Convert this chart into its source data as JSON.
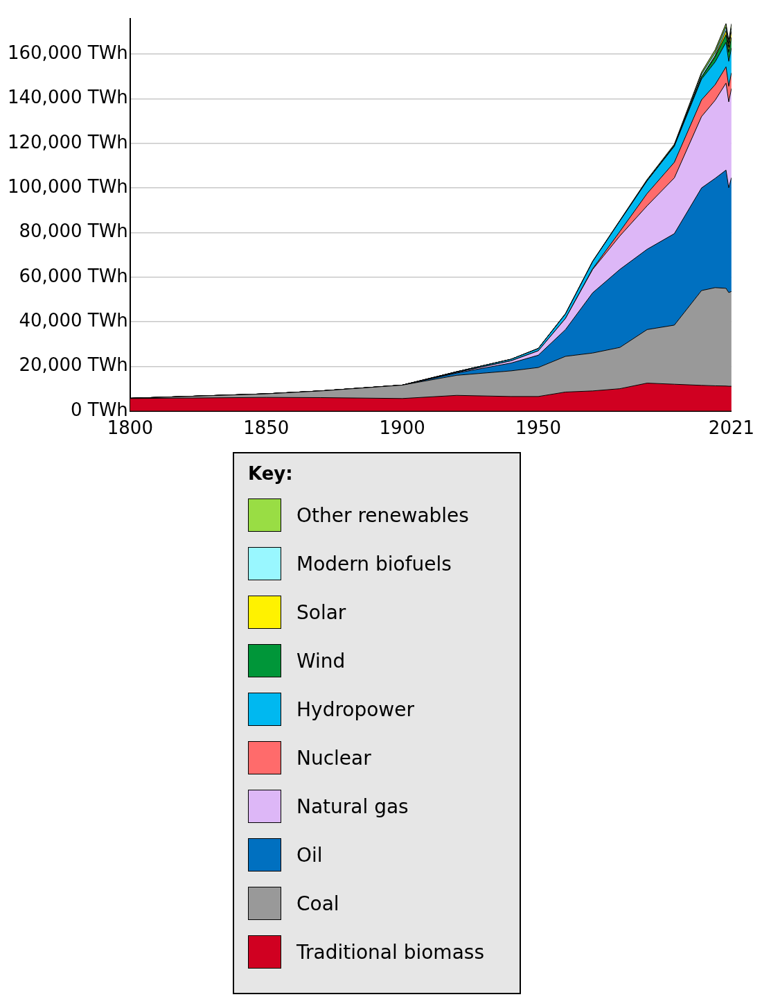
{
  "chart_data": {
    "type": "area",
    "stacked": true,
    "grid": "y",
    "legend": "bottom",
    "legend_title": "Key:",
    "x": [
      1800,
      1850,
      1870,
      1900,
      1920,
      1940,
      1950,
      1960,
      1970,
      1980,
      1990,
      2000,
      2010,
      2015,
      2019,
      2020,
      2021
    ],
    "xlim": [
      1800,
      2021
    ],
    "xticks": [
      1800,
      1850,
      1900,
      1950,
      2021
    ],
    "ylim": [
      0,
      176000
    ],
    "yticks": [
      {
        "value": 0,
        "label": "0 TWh"
      },
      {
        "value": 20000,
        "label": "20,000 TWh"
      },
      {
        "value": 40000,
        "label": "40,000 TWh"
      },
      {
        "value": 60000,
        "label": "60,000 TWh"
      },
      {
        "value": 80000,
        "label": "80,000 TWh"
      },
      {
        "value": 100000,
        "label": "100,000 TWh"
      },
      {
        "value": 120000,
        "label": "120,000 TWh"
      },
      {
        "value": 140000,
        "label": "140,000 TWh"
      },
      {
        "value": 160000,
        "label": "160,000 TWh"
      }
    ],
    "series": [
      {
        "name": "Traditional biomass",
        "color": "#d00021",
        "values": [
          5600,
          6100,
          6000,
          5600,
          7000,
          6500,
          6500,
          8500,
          9000,
          10000,
          12500,
          12000,
          11500,
          11300,
          11200,
          11100,
          11100
        ]
      },
      {
        "name": "Coal",
        "color": "#999999",
        "values": [
          100,
          1600,
          3000,
          6000,
          9000,
          11500,
          13000,
          16000,
          17000,
          18500,
          24000,
          26500,
          42500,
          44000,
          43800,
          42000,
          42500
        ]
      },
      {
        "name": "Oil",
        "color": "#0070c0",
        "values": [
          0,
          0,
          0,
          0,
          1000,
          3500,
          5500,
          12000,
          27000,
          35000,
          36000,
          41000,
          46000,
          49000,
          53000,
          47000,
          51000
        ]
      },
      {
        "name": "Natural gas",
        "color": "#ddb7f7",
        "values": [
          0,
          0,
          0,
          0,
          300,
          1000,
          2000,
          5000,
          10500,
          15000,
          19500,
          25000,
          32000,
          35000,
          39000,
          38500,
          40000
        ]
      },
      {
        "name": "Nuclear",
        "color": "#ff6b6b",
        "values": [
          0,
          0,
          0,
          0,
          0,
          0,
          0,
          0,
          300,
          2000,
          5500,
          7000,
          7500,
          7000,
          7300,
          7000,
          7000
        ]
      },
      {
        "name": "Hydropower",
        "color": "#00b8f0",
        "values": [
          0,
          0,
          0,
          0,
          300,
          700,
          1000,
          2000,
          3200,
          4700,
          5700,
          7200,
          9300,
          10200,
          11000,
          11200,
          11200
        ]
      },
      {
        "name": "Wind",
        "color": "#009639",
        "values": [
          0,
          0,
          0,
          0,
          0,
          0,
          0,
          0,
          0,
          0,
          0,
          100,
          900,
          2200,
          3500,
          4000,
          4800
        ]
      },
      {
        "name": "Solar",
        "color": "#fff200",
        "values": [
          0,
          0,
          0,
          0,
          0,
          0,
          0,
          0,
          0,
          0,
          0,
          0,
          100,
          650,
          1800,
          2100,
          2700
        ]
      },
      {
        "name": "Modern biofuels",
        "color": "#99f7ff",
        "values": [
          0,
          0,
          0,
          0,
          0,
          0,
          0,
          0,
          0,
          0,
          200,
          300,
          1200,
          1300,
          1600,
          1500,
          1600
        ]
      },
      {
        "name": "Other renewables",
        "color": "#99dd44",
        "values": [
          0,
          0,
          0,
          0,
          0,
          0,
          100,
          200,
          200,
          300,
          400,
          500,
          900,
          1300,
          1500,
          1600,
          1700
        ]
      }
    ]
  }
}
